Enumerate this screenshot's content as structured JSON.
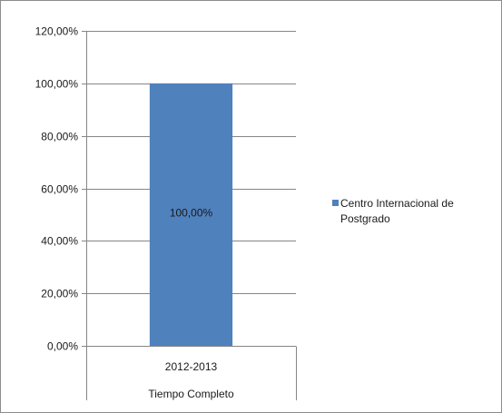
{
  "chart_data": {
    "type": "bar",
    "title": "",
    "xlabel": "",
    "ylabel": "",
    "categories": [
      "2012-2013"
    ],
    "category_group_label": "Tiempo Completo",
    "series": [
      {
        "name": "Centro Internacional de Postgrado",
        "values": [
          1.0
        ],
        "color": "#4f81bd"
      }
    ],
    "data_labels": [
      "100,00%"
    ],
    "y_ticks": [
      {
        "value": 0.0,
        "label": "0,00%"
      },
      {
        "value": 0.2,
        "label": "20,00%"
      },
      {
        "value": 0.4,
        "label": "40,00%"
      },
      {
        "value": 0.6,
        "label": "60,00%"
      },
      {
        "value": 0.8,
        "label": "80,00%"
      },
      {
        "value": 1.0,
        "label": "100,00%"
      },
      {
        "value": 1.2,
        "label": "120,00%"
      }
    ],
    "ylim": [
      0,
      1.2
    ],
    "grid": true,
    "legend_position": "right",
    "legend_label": "Centro Internacional de Postgrado",
    "gridline_color": "#868686",
    "axis_color": "#868686"
  }
}
